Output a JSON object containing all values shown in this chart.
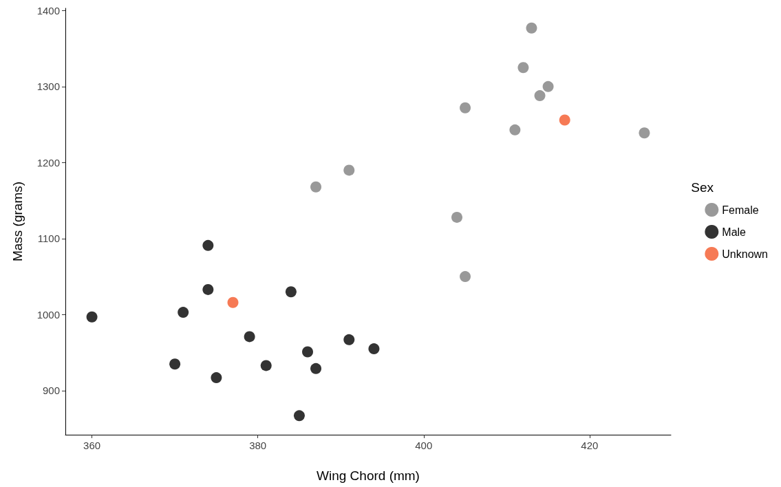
{
  "chart_data": {
    "type": "scatter",
    "xlabel": "Wing Chord (mm)",
    "ylabel": "Mass (grams)",
    "legend_title": "Sex",
    "legend": "right",
    "grid": false,
    "marker": "circle",
    "xlim": [
      356.8,
      429.8
    ],
    "xticks": [
      360,
      380,
      400,
      420
    ],
    "ylim": [
      842,
      1403
    ],
    "yticks": [
      900,
      1000,
      1100,
      1200,
      1300,
      1400
    ],
    "series": [
      {
        "name": "Female",
        "color": "#808080",
        "x": [
          413,
          412,
          415,
          414,
          405,
          411,
          426.6,
          391,
          387,
          404,
          405
        ],
        "values": [
          1377,
          1325,
          1300,
          1288,
          1272,
          1243,
          1239,
          1190,
          1168,
          1128,
          1050
        ]
      },
      {
        "name": "Male",
        "color": "#000000",
        "x": [
          360,
          374,
          374,
          371,
          384,
          379,
          391,
          394,
          386,
          370,
          381,
          387,
          375,
          385
        ],
        "values": [
          997,
          1091,
          1033,
          1003,
          1030,
          971,
          967,
          955,
          951,
          935,
          933,
          929,
          917,
          867
        ]
      },
      {
        "name": "Unknown",
        "color": "#f4592a",
        "x": [
          417,
          377
        ],
        "values": [
          1256,
          1016
        ]
      }
    ]
  }
}
